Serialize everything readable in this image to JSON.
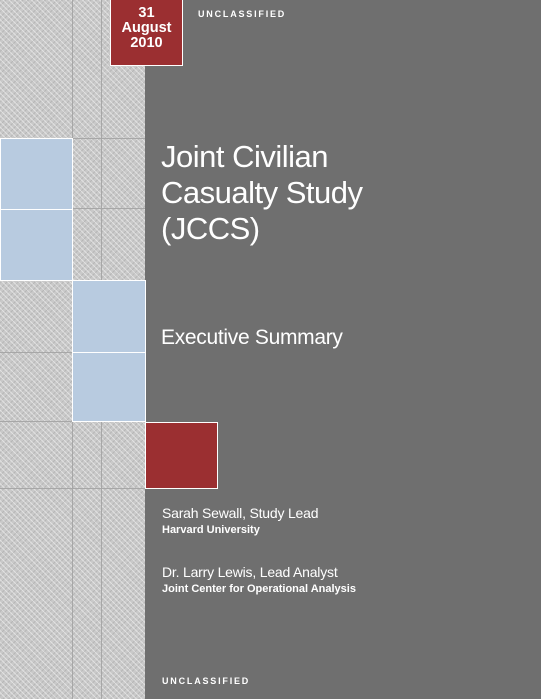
{
  "date": {
    "day": "31",
    "month": "August",
    "year": "2010"
  },
  "classification_top": "UNCLASSIFIED",
  "classification_bottom": "UNCLASSIFIED",
  "title_lines": [
    "Joint Civilian",
    "Casualty Study",
    "(JCCS)"
  ],
  "subtitle": "Executive Summary",
  "authors": [
    {
      "name": "Sarah Sewall, Study Lead",
      "org": "Harvard University"
    },
    {
      "name": "Dr. Larry Lewis, Lead Analyst",
      "org": "Joint Center for Operational Analysis"
    }
  ],
  "colors": {
    "background": "#6f6f6f",
    "accent_red": "#9b2f31",
    "accent_blue": "#b8cbe0"
  }
}
